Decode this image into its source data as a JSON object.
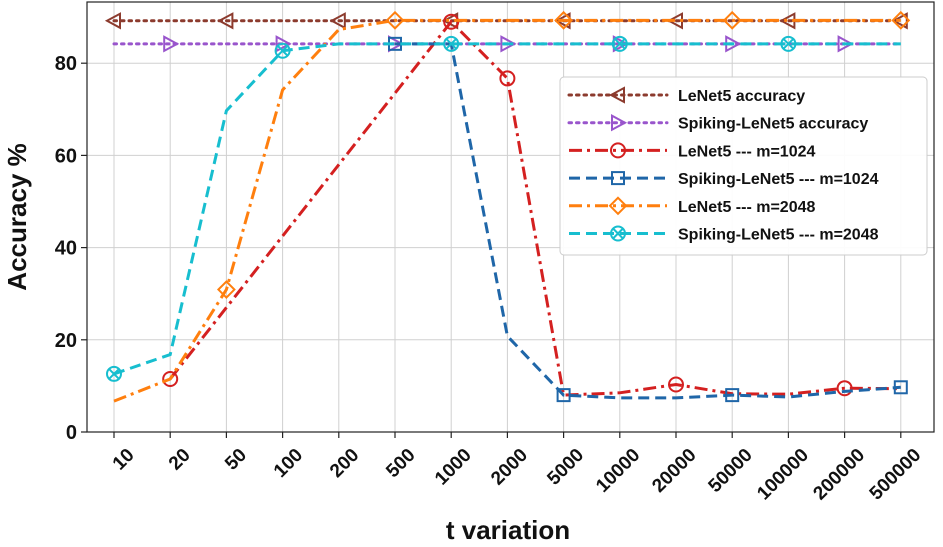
{
  "chart_data": {
    "type": "line",
    "title": "",
    "xlabel": "t variation",
    "ylabel": "Accuracy %",
    "categories": [
      "10",
      "20",
      "50",
      "100",
      "200",
      "500",
      "1000",
      "2000",
      "5000",
      "10000",
      "20000",
      "50000",
      "100000",
      "200000",
      "500000"
    ],
    "yticks": [
      0,
      20,
      40,
      60,
      80
    ],
    "ylim": [
      0,
      90
    ],
    "grid": true,
    "legend_position": "center-right",
    "series": [
      {
        "name": "LeNet5 accuracy",
        "color": "#8c3b2e",
        "dash": "dotted",
        "marker": "triangle-left",
        "values": [
          89.2,
          89.2,
          89.2,
          89.2,
          89.2,
          89.2,
          89.2,
          89.2,
          89.2,
          89.2,
          89.2,
          89.2,
          89.2,
          89.2,
          89.2
        ],
        "marked": [
          0,
          2,
          4,
          6,
          8,
          10,
          12,
          14
        ]
      },
      {
        "name": "Spiking-LeNet5 accuracy",
        "color": "#9955cc",
        "dash": "dotted",
        "marker": "triangle-right",
        "values": [
          84.2,
          84.2,
          84.2,
          84.2,
          84.2,
          84.2,
          84.2,
          84.2,
          84.2,
          84.2,
          84.2,
          84.2,
          84.2,
          84.2,
          84.2
        ],
        "marked": [
          1,
          3,
          5,
          7,
          9,
          11,
          13
        ]
      },
      {
        "name": "LeNet5  --- m=1024",
        "color": "#d42020",
        "dash": "dashdot",
        "marker": "circle",
        "values": [
          null,
          11.5,
          null,
          null,
          null,
          null,
          89.0,
          76.7,
          8.0,
          8.5,
          10.3,
          8.3,
          8.2,
          9.5,
          9.4
        ],
        "marked": [
          1,
          6,
          7,
          10,
          13
        ]
      },
      {
        "name": "Spiking-LeNet5 --- m=1024",
        "color": "#1f66a8",
        "dash": "dashed",
        "marker": "square",
        "values": [
          null,
          null,
          null,
          null,
          null,
          84.2,
          84.2,
          20.8,
          8.0,
          7.4,
          7.4,
          8.0,
          7.6,
          8.8,
          9.7
        ],
        "marked": [
          5,
          8,
          11,
          14
        ]
      },
      {
        "name": "LeNet5  --- m=2048",
        "color": "#ff7f0e",
        "dash": "dashdot",
        "marker": "diamond",
        "values": [
          6.7,
          11.5,
          30.9,
          74.2,
          87.3,
          89.3,
          89.3,
          89.3,
          89.3,
          89.3,
          89.3,
          89.3,
          89.3,
          89.3,
          89.3
        ],
        "marked": [
          2,
          5,
          8,
          11,
          14
        ]
      },
      {
        "name": "Spiking-LeNet5 --- m=2048",
        "color": "#17becf",
        "dash": "dashed",
        "marker": "x-circle",
        "values": [
          12.6,
          16.8,
          69.7,
          82.7,
          84.2,
          84.2,
          84.2,
          84.2,
          84.2,
          84.2,
          84.2,
          84.2,
          84.2,
          84.2,
          84.2
        ],
        "marked": [
          0,
          3,
          6,
          9,
          12
        ]
      }
    ]
  }
}
